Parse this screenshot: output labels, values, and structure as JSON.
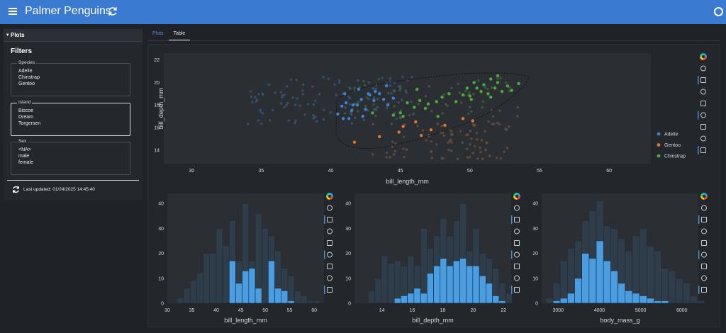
{
  "header": {
    "title": "Palmer Penguins",
    "menu_icon": "hamburger-icon",
    "reload_icon": "refresh-icon",
    "status_icon": "busy-indicator-icon",
    "color": "#3b7ad1"
  },
  "sidebar": {
    "panel_label": "Plots",
    "filters_title": "Filters",
    "species": {
      "label": "Species",
      "options": [
        "Adelie",
        "Chinstrap",
        "Gentoo"
      ]
    },
    "island": {
      "label": "Island",
      "options": [
        "Biscoe",
        "Dream",
        "Torgersen"
      ]
    },
    "sex": {
      "label": "Sex",
      "options": [
        "<NA>",
        "male",
        "female"
      ]
    },
    "last_updated": "Last updated: 01/24/2025 14:45:40"
  },
  "tabs": [
    {
      "label": "Plots"
    },
    {
      "label": "Table"
    }
  ],
  "toolbar_icons": [
    "bokeh-logo-icon",
    "pan-icon",
    "lasso-select-icon",
    "box-zoom-icon",
    "box-select-icon",
    "hover-icon",
    "save-icon",
    "reset-icon",
    "help-icon"
  ],
  "chart_data": [
    {
      "type": "scatter",
      "xlabel": "bill_length_mm",
      "ylabel": "bill_depth_mm",
      "xlim": [
        28,
        63
      ],
      "ylim": [
        12.8,
        22.6
      ],
      "xticks": [
        30,
        35,
        40,
        45,
        50,
        55,
        60
      ],
      "yticks": [
        14,
        16,
        18,
        20,
        22
      ],
      "legend": [
        "Adelie",
        "Gentoo",
        "Chinstrap"
      ],
      "legend_position": "right",
      "colors": {
        "Adelie": "#3d82d2",
        "Gentoo": "#e3782a",
        "Chinstrap": "#4dab38",
        "background": "#6b7078"
      },
      "series": [
        {
          "name": "Adelie",
          "points": [
            [
              41.1,
              18.2
            ],
            [
              41.6,
              18.0
            ],
            [
              42.0,
              19.4
            ],
            [
              42.2,
              18.5
            ],
            [
              42.5,
              17.6
            ],
            [
              42.8,
              18.9
            ],
            [
              43.1,
              18.4
            ],
            [
              43.5,
              19.0
            ],
            [
              43.8,
              18.5
            ],
            [
              44.1,
              18.0
            ],
            [
              44.5,
              18.6
            ],
            [
              40.8,
              17.9
            ],
            [
              41.3,
              16.8
            ],
            [
              41.5,
              17.5
            ],
            [
              43.2,
              19.2
            ],
            [
              40.5,
              17.2
            ],
            [
              41.9,
              18.0
            ],
            [
              42.7,
              19.0
            ],
            [
              44.0,
              19.7
            ],
            [
              41.0,
              19.0
            ],
            [
              42.3,
              17.0
            ],
            [
              40.9,
              16.8
            ]
          ]
        },
        {
          "name": "Gentoo",
          "points": [
            [
              41.7,
              14.7
            ],
            [
              43.5,
              15.2
            ],
            [
              44.9,
              15.6
            ],
            [
              45.2,
              16.1
            ],
            [
              46.1,
              16.5
            ],
            [
              46.5,
              15.3
            ],
            [
              47.2,
              15.8
            ],
            [
              48.2,
              16.2
            ],
            [
              49.5,
              16.8
            ],
            [
              50.2,
              16.6
            ]
          ]
        },
        {
          "name": "Chinstrap",
          "points": [
            [
              43.0,
              17.3
            ],
            [
              45.0,
              17.3
            ],
            [
              45.5,
              18.2
            ],
            [
              46.0,
              17.8
            ],
            [
              46.4,
              18.4
            ],
            [
              46.8,
              17.7
            ],
            [
              47.0,
              18.1
            ],
            [
              47.6,
              18.3
            ],
            [
              48.0,
              18.7
            ],
            [
              48.5,
              19.0
            ],
            [
              49.0,
              18.3
            ],
            [
              49.5,
              18.9
            ],
            [
              49.8,
              19.5
            ],
            [
              50.0,
              18.8
            ],
            [
              50.3,
              20.0
            ],
            [
              50.5,
              19.5
            ],
            [
              50.8,
              19.2
            ],
            [
              51.0,
              19.8
            ],
            [
              51.3,
              19.0
            ],
            [
              51.5,
              18.7
            ],
            [
              51.8,
              19.5
            ],
            [
              52.0,
              20.0
            ],
            [
              52.3,
              19.2
            ],
            [
              52.7,
              19.7
            ],
            [
              53.0,
              19.3
            ],
            [
              45.2,
              17.0
            ],
            [
              44.5,
              17.1
            ],
            [
              46.2,
              19.4
            ],
            [
              47.7,
              17.0
            ],
            [
              50.1,
              18.5
            ],
            [
              51.5,
              20.3
            ],
            [
              52.0,
              20.6
            ],
            [
              53.5,
              19.9
            ]
          ]
        }
      ]
    },
    {
      "type": "bar",
      "xlabel": "bill_length_mm",
      "xlim": [
        30,
        62
      ],
      "ylim": [
        0,
        44
      ],
      "xticks": [
        30,
        35,
        40,
        45,
        50,
        55,
        60
      ],
      "yticks": [
        0,
        10,
        20,
        30,
        40
      ],
      "bin_start": 32,
      "bin_width": 1.33,
      "series": [
        {
          "name": "all",
          "values": [
            2,
            6,
            9,
            12,
            20,
            20,
            30,
            23,
            33,
            17,
            40,
            17,
            36,
            30,
            27,
            21,
            14,
            11,
            5,
            3,
            1,
            1
          ]
        },
        {
          "name": "selection",
          "values": [
            0,
            0,
            0,
            0,
            0,
            0,
            0,
            0,
            17,
            8,
            13,
            14,
            6,
            0,
            17,
            6,
            5,
            1,
            0,
            0,
            0,
            0
          ]
        }
      ]
    },
    {
      "type": "bar",
      "xlabel": "bill_depth_mm",
      "xlim": [
        12.2,
        22.5
      ],
      "ylim": [
        0,
        44
      ],
      "xticks": [
        14,
        16,
        18,
        20,
        22
      ],
      "yticks": [
        0,
        10,
        20,
        30,
        40
      ],
      "bin_start": 13.1,
      "bin_width": 0.43,
      "series": [
        {
          "name": "all",
          "values": [
            5,
            10,
            19,
            16,
            17,
            15,
            19,
            15,
            30,
            22,
            27,
            34,
            27,
            33,
            40,
            21,
            30,
            20,
            18,
            14,
            8,
            4
          ]
        },
        {
          "name": "selection",
          "values": [
            0,
            0,
            0,
            0,
            2,
            3,
            4,
            6,
            4,
            12,
            15,
            18,
            15,
            17,
            18,
            15,
            15,
            11,
            8,
            3,
            1,
            0
          ]
        }
      ]
    },
    {
      "type": "bar",
      "xlabel": "body_mass_g",
      "xlim": [
        2600,
        6400
      ],
      "ylim": [
        0,
        44
      ],
      "xticks": [
        3000,
        4000,
        5000,
        6000
      ],
      "yticks": [
        0,
        10,
        20,
        30,
        40
      ],
      "bin_start": 2700,
      "bin_width": 175,
      "series": [
        {
          "name": "all",
          "values": [
            2,
            8,
            17,
            22,
            25,
            33,
            37,
            41,
            31,
            30,
            26,
            21,
            27,
            30,
            23,
            21,
            14,
            13,
            10,
            8,
            3,
            1
          ]
        },
        {
          "name": "selection",
          "values": [
            0,
            1,
            2,
            4,
            10,
            20,
            18,
            25,
            17,
            13,
            8,
            5,
            4,
            3,
            2,
            1,
            1,
            0,
            0,
            0,
            0,
            0
          ]
        }
      ]
    }
  ]
}
